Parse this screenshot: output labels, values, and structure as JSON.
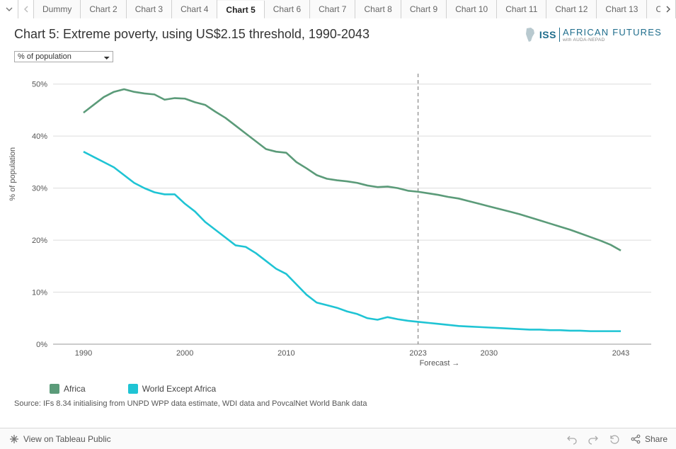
{
  "tabs": {
    "list": [
      "Dummy",
      "Chart 2",
      "Chart 3",
      "Chart 4",
      "Chart 5",
      "Chart 6",
      "Chart 7",
      "Chart 8",
      "Chart 9",
      "Chart 10",
      "Chart 11",
      "Chart 12",
      "Chart 13",
      "Ch"
    ],
    "active_index": 4
  },
  "title": "Chart 5: Extreme poverty, using US$2.15 threshold, 1990-2043",
  "logo": {
    "iss": "ISS",
    "af": "AFRICAN FUTURES",
    "sub": "with AUDA-NEPAD"
  },
  "y_select": {
    "value": "% of population"
  },
  "chart": {
    "type": "line",
    "x_domain": [
      1987,
      2046
    ],
    "y_domain": [
      0,
      52
    ],
    "y_ticks": [
      0,
      10,
      20,
      30,
      40,
      50
    ],
    "y_tick_labels": [
      "0%",
      "10%",
      "20%",
      "30%",
      "40%",
      "50%"
    ],
    "x_ticks": [
      1990,
      2000,
      2010,
      2023,
      2030,
      2043
    ],
    "x_tick_labels": [
      "1990",
      "2000",
      "2010",
      "2023",
      "2030",
      "2043"
    ],
    "y_axis_label": "% of population",
    "forecast_x": 2023,
    "forecast_label": "Forecast →",
    "background": "#ffffff",
    "grid_color": "#dcdcdc",
    "baseline_color": "#999999",
    "series": [
      {
        "name": "Africa",
        "color": "#5b9b79",
        "points": [
          [
            1990,
            44.5
          ],
          [
            1991,
            46.0
          ],
          [
            1992,
            47.5
          ],
          [
            1993,
            48.5
          ],
          [
            1994,
            49.0
          ],
          [
            1995,
            48.5
          ],
          [
            1996,
            48.2
          ],
          [
            1997,
            48.0
          ],
          [
            1998,
            47.0
          ],
          [
            1999,
            47.3
          ],
          [
            2000,
            47.2
          ],
          [
            2001,
            46.5
          ],
          [
            2002,
            46.0
          ],
          [
            2003,
            44.7
          ],
          [
            2004,
            43.5
          ],
          [
            2005,
            42.0
          ],
          [
            2006,
            40.5
          ],
          [
            2007,
            39.0
          ],
          [
            2008,
            37.5
          ],
          [
            2009,
            37.0
          ],
          [
            2010,
            36.8
          ],
          [
            2011,
            35.0
          ],
          [
            2012,
            33.8
          ],
          [
            2013,
            32.5
          ],
          [
            2014,
            31.8
          ],
          [
            2015,
            31.5
          ],
          [
            2016,
            31.3
          ],
          [
            2017,
            31.0
          ],
          [
            2018,
            30.5
          ],
          [
            2019,
            30.2
          ],
          [
            2020,
            30.3
          ],
          [
            2021,
            30.0
          ],
          [
            2022,
            29.5
          ],
          [
            2023,
            29.3
          ],
          [
            2024,
            29.0
          ],
          [
            2025,
            28.7
          ],
          [
            2026,
            28.3
          ],
          [
            2027,
            28.0
          ],
          [
            2028,
            27.5
          ],
          [
            2029,
            27.0
          ],
          [
            2030,
            26.5
          ],
          [
            2031,
            26.0
          ],
          [
            2032,
            25.5
          ],
          [
            2033,
            25.0
          ],
          [
            2034,
            24.4
          ],
          [
            2035,
            23.8
          ],
          [
            2036,
            23.2
          ],
          [
            2037,
            22.6
          ],
          [
            2038,
            22.0
          ],
          [
            2039,
            21.3
          ],
          [
            2040,
            20.6
          ],
          [
            2041,
            19.9
          ],
          [
            2042,
            19.1
          ],
          [
            2043,
            18.0
          ]
        ]
      },
      {
        "name": "World Except Africa",
        "color": "#1fc4d4",
        "points": [
          [
            1990,
            37.0
          ],
          [
            1991,
            36.0
          ],
          [
            1992,
            35.0
          ],
          [
            1993,
            34.0
          ],
          [
            1994,
            32.5
          ],
          [
            1995,
            31.0
          ],
          [
            1996,
            30.0
          ],
          [
            1997,
            29.2
          ],
          [
            1998,
            28.8
          ],
          [
            1999,
            28.8
          ],
          [
            2000,
            27.0
          ],
          [
            2001,
            25.5
          ],
          [
            2002,
            23.5
          ],
          [
            2003,
            22.0
          ],
          [
            2004,
            20.5
          ],
          [
            2005,
            19.0
          ],
          [
            2006,
            18.7
          ],
          [
            2007,
            17.5
          ],
          [
            2008,
            16.0
          ],
          [
            2009,
            14.5
          ],
          [
            2010,
            13.5
          ],
          [
            2011,
            11.5
          ],
          [
            2012,
            9.5
          ],
          [
            2013,
            8.0
          ],
          [
            2014,
            7.5
          ],
          [
            2015,
            7.0
          ],
          [
            2016,
            6.3
          ],
          [
            2017,
            5.8
          ],
          [
            2018,
            5.0
          ],
          [
            2019,
            4.7
          ],
          [
            2020,
            5.2
          ],
          [
            2021,
            4.8
          ],
          [
            2022,
            4.5
          ],
          [
            2023,
            4.3
          ],
          [
            2024,
            4.1
          ],
          [
            2025,
            3.9
          ],
          [
            2026,
            3.7
          ],
          [
            2027,
            3.5
          ],
          [
            2028,
            3.4
          ],
          [
            2029,
            3.3
          ],
          [
            2030,
            3.2
          ],
          [
            2031,
            3.1
          ],
          [
            2032,
            3.0
          ],
          [
            2033,
            2.9
          ],
          [
            2034,
            2.8
          ],
          [
            2035,
            2.8
          ],
          [
            2036,
            2.7
          ],
          [
            2037,
            2.7
          ],
          [
            2038,
            2.6
          ],
          [
            2039,
            2.6
          ],
          [
            2040,
            2.5
          ],
          [
            2041,
            2.5
          ],
          [
            2042,
            2.5
          ],
          [
            2043,
            2.5
          ]
        ]
      }
    ]
  },
  "legend": [
    {
      "label": "Africa",
      "color": "#5b9b79"
    },
    {
      "label": "World Except Africa",
      "color": "#1fc4d4"
    }
  ],
  "source": "Source: IFs 8.34 initialising from UNPD WPP data estimate, WDI data and PovcalNet World Bank data",
  "footer": {
    "view_label": "View on Tableau Public",
    "share_label": "Share"
  }
}
